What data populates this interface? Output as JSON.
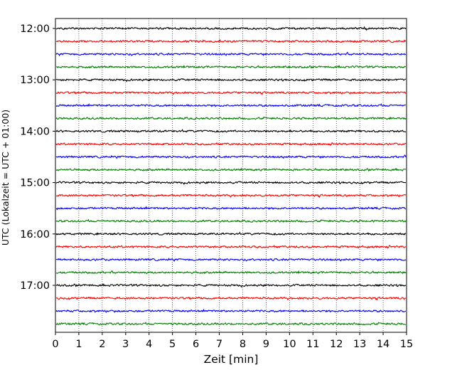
{
  "chart_data": {
    "type": "line",
    "subtype": "helicorder",
    "title": "",
    "xlabel": "Zeit  [min]",
    "ylabel": "UTC (Lokalzeit = UTC + 01:00)",
    "xlim": [
      0,
      15
    ],
    "x_ticks": [
      0,
      1,
      2,
      3,
      4,
      5,
      6,
      7,
      8,
      9,
      10,
      11,
      12,
      13,
      14,
      15
    ],
    "y_tick_labels": [
      "12:00",
      "13:00",
      "14:00",
      "15:00",
      "16:00",
      "17:00"
    ],
    "trace_interval_min": 15,
    "trace_colors": [
      "#000000",
      "#ff0000",
      "#0000ff",
      "#008000"
    ],
    "traces": [
      "12:00",
      "12:15",
      "12:30",
      "12:45",
      "13:00",
      "13:15",
      "13:30",
      "13:45",
      "14:00",
      "14:15",
      "14:30",
      "14:45",
      "15:00",
      "15:15",
      "15:30",
      "15:45",
      "16:00",
      "16:15",
      "16:30",
      "16:45",
      "17:00",
      "17:15",
      "17:30",
      "17:45"
    ],
    "grid": {
      "x": "dotted vertical lines at each minute",
      "y": false
    },
    "legend": "none"
  }
}
